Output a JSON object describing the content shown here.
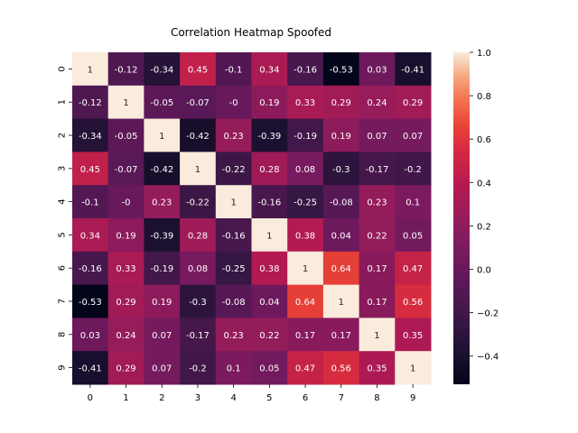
{
  "chart_data": {
    "type": "heatmap",
    "title": "Correlation Heatmap Spoofed",
    "xlabel": "",
    "ylabel": "",
    "x_categories": [
      "0",
      "1",
      "2",
      "3",
      "4",
      "5",
      "6",
      "7",
      "8",
      "9"
    ],
    "y_categories": [
      "0",
      "1",
      "2",
      "3",
      "4",
      "5",
      "6",
      "7",
      "8",
      "9"
    ],
    "values": [
      [
        1,
        -0.12,
        -0.34,
        0.45,
        -0.1,
        0.34,
        -0.16,
        -0.53,
        0.03,
        -0.41
      ],
      [
        -0.12,
        1,
        -0.05,
        -0.07,
        0,
        0.19,
        0.33,
        0.29,
        0.24,
        0.29
      ],
      [
        -0.34,
        -0.05,
        1,
        -0.42,
        0.23,
        -0.39,
        -0.19,
        0.19,
        0.07,
        0.07
      ],
      [
        0.45,
        -0.07,
        -0.42,
        1,
        -0.22,
        0.28,
        0.08,
        -0.3,
        -0.17,
        -0.2
      ],
      [
        -0.1,
        0,
        0.23,
        -0.22,
        1,
        -0.16,
        -0.25,
        -0.08,
        0.23,
        0.1
      ],
      [
        0.34,
        0.19,
        -0.39,
        0.28,
        -0.16,
        1,
        0.38,
        0.04,
        0.22,
        0.05
      ],
      [
        -0.16,
        0.33,
        -0.19,
        0.08,
        -0.25,
        0.38,
        1,
        0.64,
        0.17,
        0.47
      ],
      [
        -0.53,
        0.29,
        0.19,
        -0.3,
        -0.08,
        0.04,
        0.64,
        1,
        0.17,
        0.56
      ],
      [
        0.03,
        0.24,
        0.07,
        -0.17,
        0.23,
        0.22,
        0.17,
        0.17,
        1,
        0.35
      ],
      [
        -0.41,
        0.29,
        0.07,
        -0.2,
        0.1,
        0.05,
        0.47,
        0.56,
        0.35,
        1
      ]
    ],
    "colormap": "rocket",
    "vmin": -0.53,
    "vmax": 1.0,
    "colorbar_ticks": [
      "1.0",
      "0.8",
      "0.6",
      "0.4",
      "0.2",
      "0.0",
      "−0.2",
      "−0.4"
    ],
    "annotations": true,
    "grid": false,
    "legend": "colorbar-right"
  }
}
